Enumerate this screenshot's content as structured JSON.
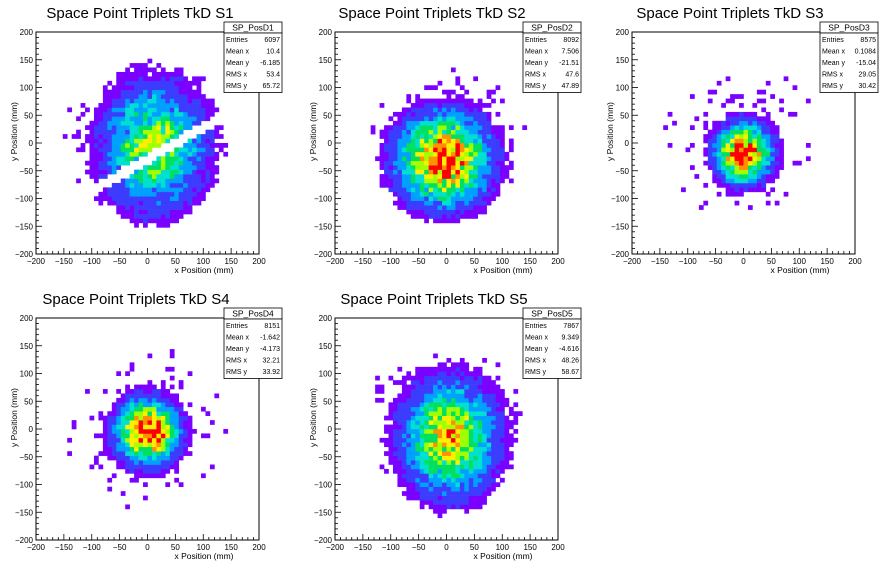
{
  "chart_data": [
    {
      "type": "heatmap",
      "title": "Space Point Triplets TkD S1",
      "xlabel": "x Position (mm)",
      "ylabel": "y Position (mm)",
      "xlim": [
        -200,
        200
      ],
      "ylim": [
        -200,
        200
      ],
      "x_ticks": [
        "−200",
        "−150",
        "−100",
        "−50",
        "0",
        "50",
        "100",
        "150",
        "200"
      ],
      "y_ticks": [
        "200",
        "150",
        "100",
        "50",
        "0",
        "−50",
        "−100",
        "−150",
        "−200"
      ],
      "colormap": [
        "#7a00ff",
        "#3c3cff",
        "#00a0ff",
        "#00e0d0",
        "#00e060",
        "#a0ff00",
        "#ffee00",
        "#ff9000",
        "#ff0000"
      ],
      "stats": {
        "name": "SP_PosD1",
        "rows": [
          {
            "label": "Entries",
            "value": "6097"
          },
          {
            "label": "Mean x",
            "value": "10.4"
          },
          {
            "label": "Mean y",
            "value": "-6.185"
          },
          {
            "label": "RMS x",
            "value": "53.4"
          },
          {
            "label": "RMS y",
            "value": "65.72"
          }
        ]
      },
      "distribution": {
        "shape": "split-band",
        "center": [
          10.4,
          -6.185
        ],
        "rms": [
          53.4,
          65.72
        ],
        "extent": 150,
        "gap_angle_deg": 30,
        "gap_offset": -25,
        "gap_halfwidth": 9,
        "peak_intensity": 0.55
      }
    },
    {
      "type": "heatmap",
      "title": "Space Point Triplets TkD S2",
      "xlabel": "x Position (mm)",
      "ylabel": "y Position (mm)",
      "xlim": [
        -200,
        200
      ],
      "ylim": [
        -200,
        200
      ],
      "x_ticks": [
        "−200",
        "−150",
        "−100",
        "−50",
        "0",
        "50",
        "100",
        "150",
        "200"
      ],
      "y_ticks": [
        "200",
        "150",
        "100",
        "50",
        "0",
        "−50",
        "−100",
        "−150",
        "−200"
      ],
      "colormap": [
        "#7a00ff",
        "#3c3cff",
        "#00a0ff",
        "#00e0d0",
        "#00e060",
        "#a0ff00",
        "#ffee00",
        "#ff9000",
        "#ff0000"
      ],
      "stats": {
        "name": "SP_PosD2",
        "rows": [
          {
            "label": "Entries",
            "value": "8092"
          },
          {
            "label": "Mean x",
            "value": "7.506"
          },
          {
            "label": "Mean y",
            "value": "-21.51"
          },
          {
            "label": "RMS x",
            "value": "47.6"
          },
          {
            "label": "RMS y",
            "value": "47.89"
          }
        ]
      },
      "distribution": {
        "shape": "blob",
        "center": [
          -5,
          -30
        ],
        "rms": [
          47.6,
          47.89
        ],
        "extent": 140,
        "peak_intensity": 0.95
      }
    },
    {
      "type": "heatmap",
      "title": "Space Point Triplets TkD S3",
      "xlabel": "x Position (mm)",
      "ylabel": "y Position (mm)",
      "xlim": [
        -200,
        200
      ],
      "ylim": [
        -200,
        200
      ],
      "x_ticks": [
        "−200",
        "−150",
        "−100",
        "−50",
        "0",
        "50",
        "100",
        "150",
        "200"
      ],
      "y_ticks": [
        "200",
        "150",
        "100",
        "50",
        "0",
        "−50",
        "−100",
        "−150",
        "−200"
      ],
      "colormap": [
        "#7a00ff",
        "#3c3cff",
        "#00a0ff",
        "#00e0d0",
        "#00e060",
        "#a0ff00",
        "#ffee00",
        "#ff9000",
        "#ff0000"
      ],
      "stats": {
        "name": "SP_PosD3",
        "rows": [
          {
            "label": "Entries",
            "value": "8575"
          },
          {
            "label": "Mean x",
            "value": "0.1084"
          },
          {
            "label": "Mean y",
            "value": "-15.04"
          },
          {
            "label": "RMS x",
            "value": "29.05"
          },
          {
            "label": "RMS y",
            "value": "30.42"
          }
        ]
      },
      "distribution": {
        "shape": "blob",
        "center": [
          0,
          -18
        ],
        "rms": [
          29.05,
          30.42
        ],
        "extent": 140,
        "peak_intensity": 1.0
      }
    },
    {
      "type": "heatmap",
      "title": "Space Point Triplets TkD S4",
      "xlabel": "x Position (mm)",
      "ylabel": "y Position (mm)",
      "xlim": [
        -200,
        200
      ],
      "ylim": [
        -200,
        200
      ],
      "x_ticks": [
        "−200",
        "−150",
        "−100",
        "−50",
        "0",
        "50",
        "100",
        "150",
        "200"
      ],
      "y_ticks": [
        "200",
        "150",
        "100",
        "50",
        "0",
        "−50",
        "−100",
        "−150",
        "−200"
      ],
      "colormap": [
        "#7a00ff",
        "#3c3cff",
        "#00a0ff",
        "#00e0d0",
        "#00e060",
        "#a0ff00",
        "#ffee00",
        "#ff9000",
        "#ff0000"
      ],
      "stats": {
        "name": "SP_PosD4",
        "rows": [
          {
            "label": "Entries",
            "value": "8151"
          },
          {
            "label": "Mean x",
            "value": "-1.642"
          },
          {
            "label": "Mean y",
            "value": "-4.173"
          },
          {
            "label": "RMS x",
            "value": "32.21"
          },
          {
            "label": "RMS y",
            "value": "33.92"
          }
        ]
      },
      "distribution": {
        "shape": "blob",
        "center": [
          0,
          -5
        ],
        "rms": [
          32.21,
          33.92
        ],
        "extent": 145,
        "peak_intensity": 1.0
      }
    },
    {
      "type": "heatmap",
      "title": "Space Point Triplets TkD S5",
      "xlabel": "x Position (mm)",
      "ylabel": "y Position (mm)",
      "xlim": [
        -200,
        200
      ],
      "ylim": [
        -200,
        200
      ],
      "x_ticks": [
        "−200",
        "−150",
        "−100",
        "−50",
        "0",
        "50",
        "100",
        "150",
        "200"
      ],
      "y_ticks": [
        "200",
        "150",
        "100",
        "50",
        "0",
        "−50",
        "−100",
        "−150",
        "−200"
      ],
      "colormap": [
        "#7a00ff",
        "#3c3cff",
        "#00a0ff",
        "#00e0d0",
        "#00e060",
        "#a0ff00",
        "#ffee00",
        "#ff9000",
        "#ff0000"
      ],
      "stats": {
        "name": "SP_PosD5",
        "rows": [
          {
            "label": "Entries",
            "value": "7867"
          },
          {
            "label": "Mean x",
            "value": "9.349"
          },
          {
            "label": "Mean y",
            "value": "-4.616"
          },
          {
            "label": "RMS x",
            "value": "48.26"
          },
          {
            "label": "RMS y",
            "value": "58.67"
          }
        ]
      },
      "distribution": {
        "shape": "blob",
        "center": [
          5,
          -15
        ],
        "rms": [
          48.26,
          58.67
        ],
        "extent": 150,
        "peak_intensity": 0.75
      }
    }
  ]
}
